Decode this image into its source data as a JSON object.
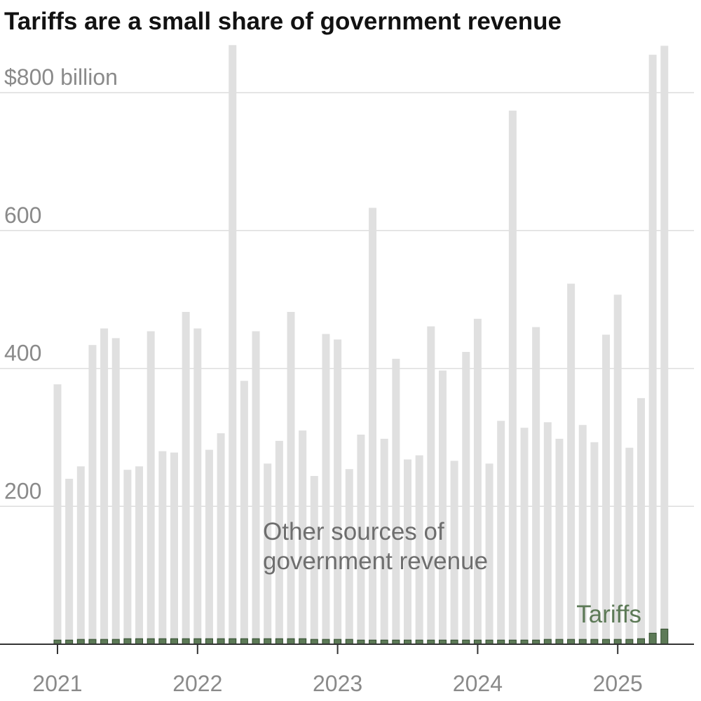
{
  "colors": {
    "other": "#e0e0e0",
    "tariffs": "#5d7a57",
    "tariffs_stroke": "#2f4a2c",
    "grid": "#dddddd",
    "axis": "#333333"
  },
  "chart_data": {
    "type": "bar",
    "stacked": true,
    "title": "Tariffs are a small share of government revenue",
    "y_unit_label": "$800 billion",
    "ylim": [
      0,
      870
    ],
    "y_ticks": [
      200,
      400,
      600,
      800
    ],
    "y_tick_labels": [
      "200",
      "400",
      "600",
      "$800 billion"
    ],
    "x_tick_labels": [
      "2021",
      "2022",
      "2023",
      "2024",
      "2025"
    ],
    "x_tick_month_index": [
      0,
      12,
      24,
      36,
      48
    ],
    "series": [
      {
        "name": "Other sources of government revenue",
        "annotation": [
          "Other sources of",
          "government revenue"
        ],
        "values": [
          377,
          240,
          258,
          434,
          458,
          444,
          253,
          258,
          454,
          280,
          278,
          482,
          458,
          282,
          306,
          869,
          382,
          454,
          262,
          295,
          482,
          310,
          244,
          450,
          442,
          254,
          304,
          633,
          298,
          414,
          268,
          274,
          461,
          397,
          266,
          424,
          472,
          262,
          324,
          774,
          314,
          460,
          322,
          298,
          523,
          318,
          293,
          449,
          507,
          285,
          357,
          855,
          868
        ]
      },
      {
        "name": "Tariffs",
        "annotation": [
          "Tariffs"
        ],
        "values": [
          6,
          6,
          7,
          7,
          7,
          7,
          8,
          8,
          8,
          8,
          8,
          8,
          8,
          8,
          8,
          8,
          8,
          8,
          8,
          8,
          8,
          8,
          7,
          7,
          7,
          7,
          6,
          6,
          6,
          6,
          6,
          6,
          6,
          6,
          6,
          6,
          6,
          6,
          6,
          6,
          6,
          6,
          7,
          7,
          7,
          7,
          7,
          7,
          7,
          7,
          8,
          16,
          22
        ]
      }
    ]
  }
}
